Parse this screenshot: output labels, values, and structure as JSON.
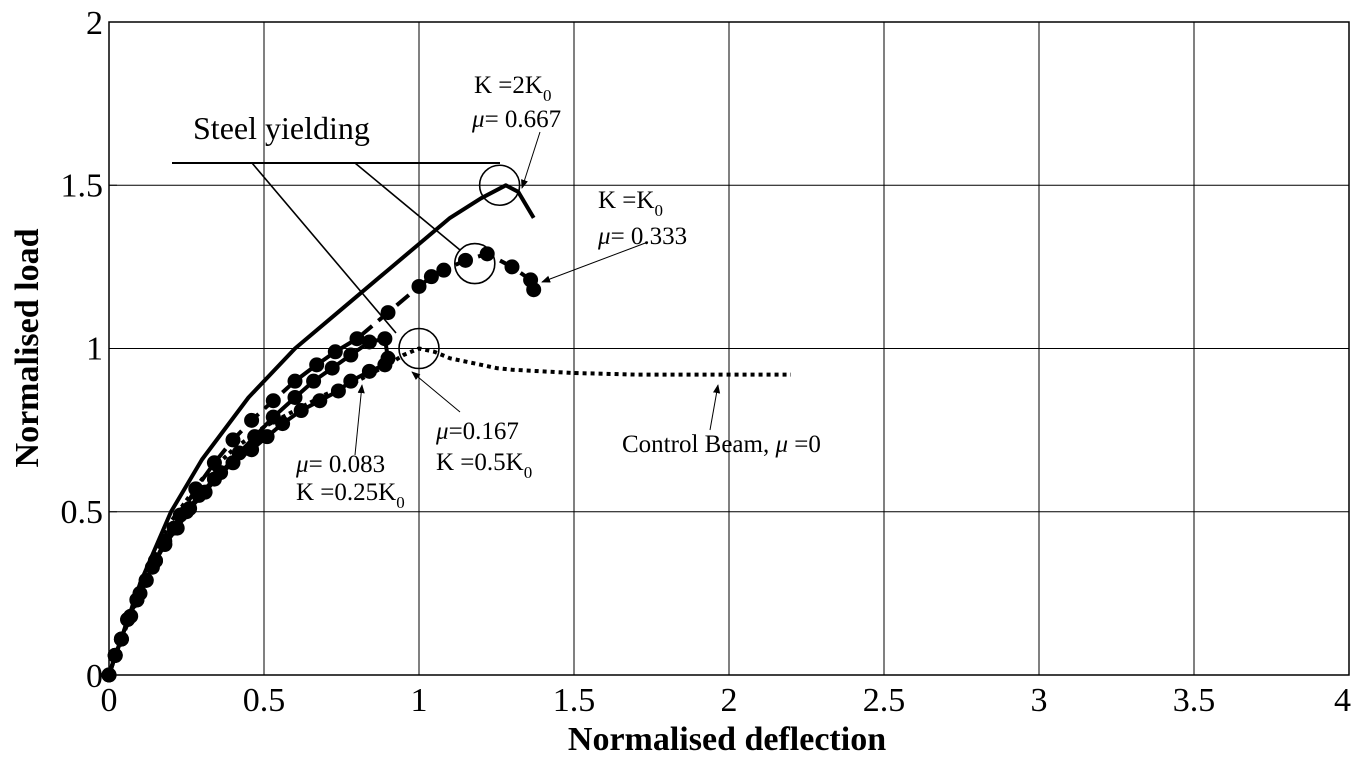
{
  "chart_data": {
    "type": "line",
    "title": "",
    "xlabel": "Normalised deflection",
    "ylabel": "Normalised load",
    "xlim": [
      0,
      4
    ],
    "ylim": [
      0,
      2
    ],
    "x_ticks": [
      "0",
      "0.5",
      "1",
      "1.5",
      "2",
      "2.5",
      "3",
      "3.5",
      "4"
    ],
    "y_ticks": [
      "0",
      "0.5",
      "1",
      "1.5",
      "2"
    ],
    "grid": true,
    "legend": "none",
    "series": [
      {
        "style": "dotted",
        "x": [
          0,
          0.05,
          0.1,
          0.2,
          0.3,
          0.4,
          0.5,
          0.6,
          0.7,
          0.8,
          0.9,
          0.95,
          1.0,
          1.05,
          1.1,
          1.2,
          1.25,
          1.3,
          1.4,
          1.5,
          1.7,
          1.9,
          2.1,
          2.2
        ],
        "y": [
          0,
          0.14,
          0.28,
          0.47,
          0.6,
          0.69,
          0.76,
          0.81,
          0.86,
          0.9,
          0.95,
          0.98,
          1.0,
          0.99,
          0.97,
          0.95,
          0.94,
          0.935,
          0.93,
          0.925,
          0.92,
          0.92,
          0.92,
          0.92
        ]
      },
      {
        "style": "solid-markers",
        "x": [
          0,
          0.02,
          0.04,
          0.06,
          0.09,
          0.12,
          0.15,
          0.18,
          0.21,
          0.25,
          0.29,
          0.34,
          0.4,
          0.46,
          0.51,
          0.56,
          0.62,
          0.68,
          0.74,
          0.78,
          0.84,
          0.89
        ],
        "y": [
          0,
          0.06,
          0.11,
          0.17,
          0.23,
          0.29,
          0.35,
          0.4,
          0.45,
          0.5,
          0.55,
          0.6,
          0.65,
          0.69,
          0.73,
          0.77,
          0.81,
          0.84,
          0.87,
          0.9,
          0.93,
          0.95
        ]
      },
      {
        "style": "solid-markers",
        "x": [
          0,
          0.02,
          0.04,
          0.06,
          0.09,
          0.12,
          0.15,
          0.18,
          0.22,
          0.26,
          0.31,
          0.36,
          0.42,
          0.47,
          0.53,
          0.6,
          0.66,
          0.72,
          0.78,
          0.84,
          0.89,
          0.9
        ],
        "y": [
          0,
          0.06,
          0.11,
          0.17,
          0.23,
          0.29,
          0.35,
          0.4,
          0.45,
          0.51,
          0.56,
          0.62,
          0.68,
          0.73,
          0.79,
          0.85,
          0.9,
          0.94,
          0.98,
          1.02,
          1.03,
          0.97
        ]
      },
      {
        "style": "dashed-markers",
        "x": [
          0,
          0.02,
          0.04,
          0.07,
          0.1,
          0.14,
          0.18,
          0.23,
          0.28,
          0.34,
          0.4,
          0.46,
          0.53,
          0.6,
          0.67,
          0.73,
          0.8,
          0.9,
          1.0,
          1.04,
          1.08,
          1.15,
          1.22,
          1.3,
          1.36,
          1.37
        ],
        "y": [
          0,
          0.06,
          0.11,
          0.18,
          0.25,
          0.33,
          0.41,
          0.49,
          0.57,
          0.65,
          0.72,
          0.78,
          0.84,
          0.9,
          0.95,
          0.99,
          1.03,
          1.11,
          1.19,
          1.22,
          1.24,
          1.27,
          1.29,
          1.25,
          1.21,
          1.18
        ]
      },
      {
        "style": "solid",
        "x": [
          0,
          0.05,
          0.1,
          0.2,
          0.3,
          0.45,
          0.6,
          0.75,
          0.9,
          1.0,
          1.1,
          1.2,
          1.28,
          1.32,
          1.37
        ],
        "y": [
          0,
          0.14,
          0.28,
          0.5,
          0.66,
          0.85,
          1.0,
          1.12,
          1.24,
          1.32,
          1.4,
          1.46,
          1.5,
          1.48,
          1.4
        ]
      }
    ],
    "yield_circles": [
      {
        "x": 1.0,
        "y": 1.0
      },
      {
        "x": 1.18,
        "y": 1.26
      },
      {
        "x": 1.26,
        "y": 1.5
      }
    ],
    "annotations": {
      "steel_yielding": "Steel yielding",
      "k_2k0": {
        "main": "K =2K",
        "sub": "0"
      },
      "mu_0667": {
        "mu": "μ",
        "rest": "= 0.667"
      },
      "k_k0": {
        "main": "K =K",
        "sub": "0"
      },
      "mu_0333": {
        "mu": "μ",
        "rest": "= 0.333"
      },
      "mu_0167": {
        "mu": "μ",
        "rest": "=0.167"
      },
      "k_05k0": {
        "main": "K  =0.5K",
        "sub": "0"
      },
      "mu_0083": {
        "mu": "μ",
        "rest": "= 0.083"
      },
      "k_025k0": {
        "main": "K =0.25K",
        "sub": "0"
      },
      "control_beam": {
        "main": "Control Beam, ",
        "mu": "μ",
        "rest": " =0"
      }
    }
  }
}
